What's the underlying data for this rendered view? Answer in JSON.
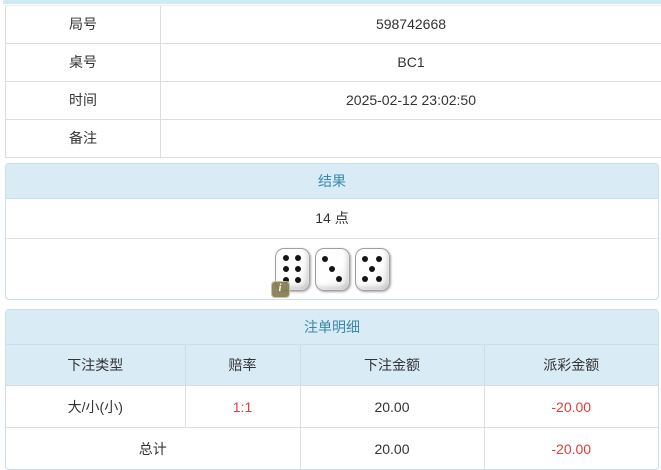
{
  "info_table": {
    "rows": [
      {
        "label": "局号",
        "value": "598742668"
      },
      {
        "label": "桌号",
        "value": "BC1"
      },
      {
        "label": "时间",
        "value": "2025-02-12 23:02:50"
      },
      {
        "label": "备注",
        "value": ""
      }
    ]
  },
  "result_panel": {
    "title": "结果",
    "points": "14 点",
    "dice": [
      6,
      3,
      5
    ],
    "info_badge": "i"
  },
  "bets_panel": {
    "title": "注单明细",
    "columns": {
      "type": "下注类型",
      "odds": "赔率",
      "amount": "下注金额",
      "payout": "派彩金额"
    },
    "rows": [
      {
        "type": "大/小(小)",
        "odds": "1:1",
        "amount": "20.00",
        "payout": "-20.00"
      }
    ],
    "total": {
      "label": "总计",
      "amount": "20.00",
      "payout": "-20.00"
    }
  },
  "colors": {
    "top_strip": "#cfe9f5",
    "panel_header_bg": "#d9ecf6",
    "panel_header_text": "#3a87ad",
    "panel_border": "#c7e0ee",
    "row_border": "#dddddd",
    "cell_border": "#e0e0e0",
    "text": "#333333",
    "negative": "#d84040"
  }
}
